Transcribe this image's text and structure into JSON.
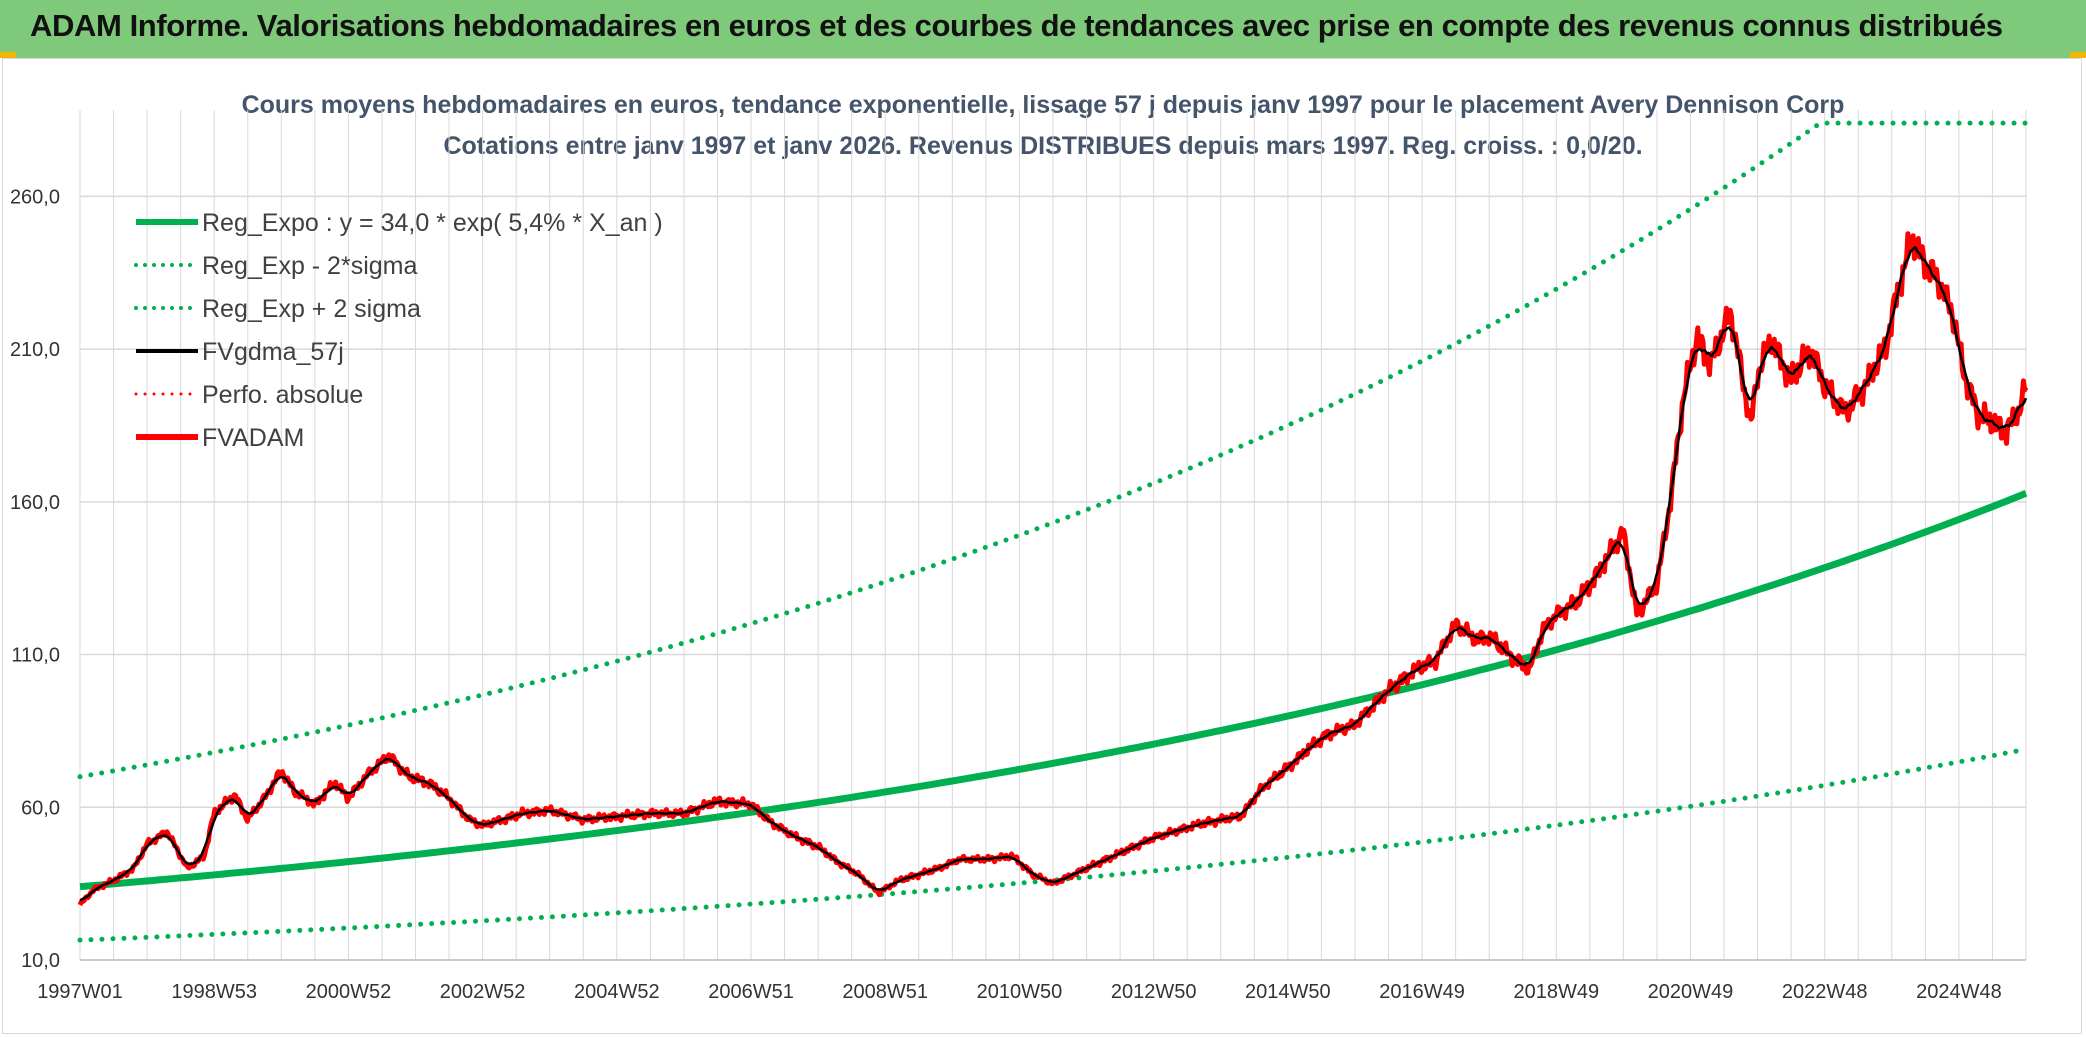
{
  "header": {
    "title": "ADAM Informe. Valorisations hebdomadaires en euros et des courbes de tendances avec prise en compte des revenus connus distribués"
  },
  "colors": {
    "banner": "#7fc97a",
    "trend_green": "#00b050",
    "price_red": "#ff0000",
    "avg_black": "#000000",
    "grid": "#d9d9d9"
  },
  "chart_data": {
    "type": "line",
    "title_line1": "Cours moyens hebdomadaires en euros, tendance exponentielle, lissage 57 j depuis janv 1997 pour le placement Avery Dennison Corp",
    "title_line2": "Cotations entre janv 1997 et janv 2026. Revenus DISTRIBUES depuis mars 1997. Reg. croiss. : 0,0/20.",
    "x_range": [
      1997.0,
      2026.0
    ],
    "ylim": [
      10,
      285
    ],
    "y_ticks": [
      10,
      60,
      110,
      160,
      210,
      260
    ],
    "y_tick_labels": [
      "10,0",
      "60,0",
      "110,0",
      "160,0",
      "210,0",
      "260,0"
    ],
    "x_ticks": [
      1997.0,
      1999.0,
      2001.0,
      2003.0,
      2005.0,
      2007.0,
      2009.0,
      2011.0,
      2013.0,
      2015.0,
      2017.0,
      2019.0,
      2021.0,
      2023.0,
      2025.0
    ],
    "x_tick_labels": [
      "1997W01",
      "1998W53",
      "2000W52",
      "2002W52",
      "2004W52",
      "2006W51",
      "2008W51",
      "2010W50",
      "2012W50",
      "2014W50",
      "2016W49",
      "2018W49",
      "2020W49",
      "2022W48",
      "2024W48"
    ],
    "legend": [
      {
        "label": "Reg_Expo : y = 34,0 * exp( 5,4% *  X_an )",
        "color": "#00b050",
        "style": "solid",
        "width": 6
      },
      {
        "label": "Reg_Exp - 2*sigma",
        "color": "#00b050",
        "style": "dotted",
        "width": 4
      },
      {
        "label": "Reg_Exp + 2 sigma",
        "color": "#00b050",
        "style": "dotted",
        "width": 4
      },
      {
        "label": "FVgdma_57j",
        "color": "#000000",
        "style": "solid",
        "width": 4
      },
      {
        "label": "Perfo. absolue",
        "color": "#ff0000",
        "style": "dotted",
        "width": 3
      },
      {
        "label": "FVADAM",
        "color": "#ff0000",
        "style": "solid",
        "width": 6
      }
    ],
    "series": [
      {
        "name": "Reg_Expo",
        "type": "exp",
        "a": 34.0,
        "b": 0.054
      },
      {
        "name": "Reg_Exp - 2*sigma",
        "type": "exp",
        "a": 16.5,
        "b": 0.054
      },
      {
        "name": "Reg_Exp + 2 sigma",
        "type": "exp",
        "a": 70.0,
        "b": 0.054,
        "cap": 284
      },
      {
        "name": "FVgdma_57j",
        "type": "smoothed"
      },
      {
        "name": "FVADAM",
        "type": "points",
        "x": [
          1997.0,
          1997.2,
          1997.5,
          1997.8,
          1998.0,
          1998.3,
          1998.6,
          1998.85,
          1999.0,
          1999.3,
          1999.5,
          1999.75,
          2000.0,
          2000.2,
          2000.5,
          2000.8,
          2001.0,
          2001.3,
          2001.6,
          2001.9,
          2002.2,
          2002.5,
          2002.8,
          2003.0,
          2003.3,
          2003.6,
          2004.0,
          2004.5,
          2005.0,
          2005.5,
          2006.0,
          2006.5,
          2007.0,
          2007.3,
          2007.6,
          2008.0,
          2008.3,
          2008.6,
          2008.9,
          2009.2,
          2009.5,
          2009.8,
          2010.1,
          2010.5,
          2010.9,
          2011.2,
          2011.5,
          2011.8,
          2012.0,
          2012.3,
          2012.6,
          2013.0,
          2013.3,
          2013.6,
          2014.0,
          2014.3,
          2014.6,
          2015.0,
          2015.3,
          2015.6,
          2016.0,
          2016.3,
          2016.6,
          2016.9,
          2017.2,
          2017.5,
          2017.8,
          2018.0,
          2018.3,
          2018.6,
          2018.8,
          2019.0,
          2019.3,
          2019.6,
          2019.8,
          2020.0,
          2020.2,
          2020.35,
          2020.5,
          2020.7,
          2020.9,
          2021.1,
          2021.3,
          2021.6,
          2021.9,
          2022.0,
          2022.2,
          2022.5,
          2022.8,
          2023.0,
          2023.3,
          2023.6,
          2023.9,
          2024.1,
          2024.3,
          2024.5,
          2024.7,
          2024.9,
          2025.1,
          2025.3,
          2025.5,
          2025.7,
          2025.9,
          2026.0
        ],
        "values": [
          28,
          33,
          36,
          40,
          48,
          52,
          40,
          44,
          58,
          64,
          56,
          63,
          72,
          65,
          61,
          68,
          63,
          71,
          77,
          70,
          68,
          63,
          56,
          54,
          56,
          58,
          59,
          56,
          57,
          58,
          58,
          62,
          61,
          55,
          51,
          47,
          42,
          38,
          32,
          36,
          38,
          40,
          43,
          43,
          44,
          38,
          35,
          38,
          40,
          43,
          46,
          50,
          52,
          54,
          56,
          57,
          66,
          73,
          79,
          84,
          87,
          94,
          100,
          105,
          108,
          120,
          115,
          116,
          110,
          105,
          118,
          123,
          127,
          136,
          143,
          150,
          123,
          128,
          133,
          160,
          195,
          214,
          205,
          222,
          185,
          202,
          213,
          200,
          210,
          198,
          189,
          198,
          210,
          230,
          246,
          238,
          232,
          222,
          200,
          188,
          186,
          183,
          190,
          198
        ]
      }
    ]
  }
}
